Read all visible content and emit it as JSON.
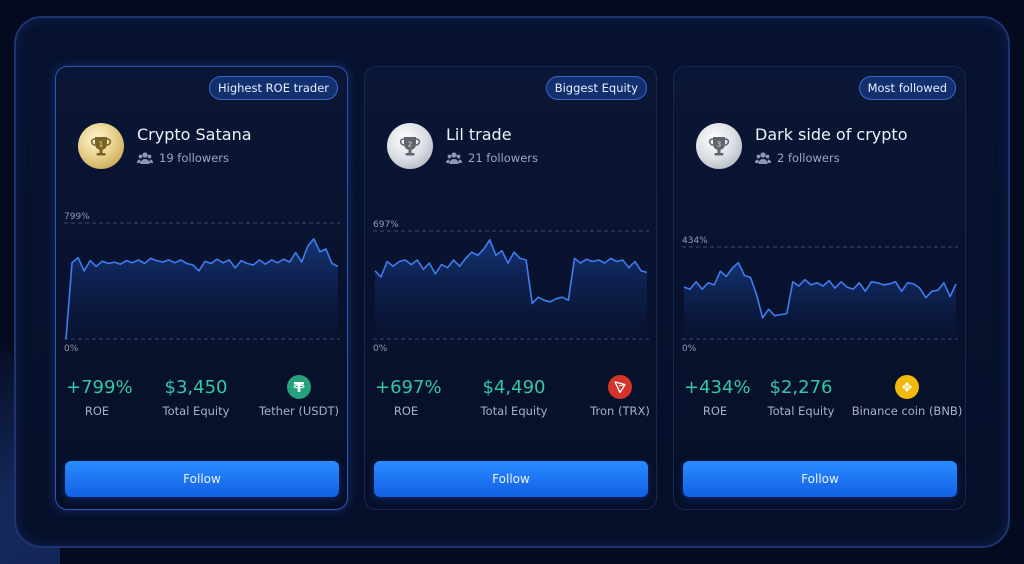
{
  "cards": [
    {
      "badge": "Highest ROE trader",
      "rank": "1",
      "medal": "gold",
      "name": "Crypto Satana",
      "followers": "19 followers",
      "chart_max_label": "799%",
      "chart_min_label": "0%",
      "roe_value": "+799%",
      "roe_label": "ROE",
      "equity_value": "$3,450",
      "equity_label": "Total Equity",
      "coin_label": "Tether (USDT)",
      "coin_icon": "tether-icon",
      "coin_color": "#26a17b",
      "follow_label": "Follow"
    },
    {
      "badge": "Biggest Equity",
      "rank": "2",
      "medal": "silver",
      "name": "Lil trade",
      "followers": "21 followers",
      "chart_max_label": "697%",
      "chart_min_label": "0%",
      "roe_value": "+697%",
      "roe_label": "ROE",
      "equity_value": "$4,490",
      "equity_label": "Total Equity",
      "coin_label": "Tron (TRX)",
      "coin_icon": "tron-icon",
      "coin_color": "#d4342a",
      "follow_label": "Follow"
    },
    {
      "badge": "Most followed",
      "rank": "3",
      "medal": "silver",
      "name": "Dark side of crypto",
      "followers": "2 followers",
      "chart_max_label": "434%",
      "chart_min_label": "0%",
      "roe_value": "+434%",
      "roe_label": "ROE",
      "equity_value": "$2,276",
      "equity_label": "Total Equity",
      "coin_label": "Binance coin (BNB)",
      "coin_icon": "bnb-icon",
      "coin_color": "#f0b90b",
      "follow_label": "Follow"
    }
  ],
  "chart_data": [
    {
      "type": "area",
      "ylim": [
        0,
        799
      ],
      "values": [
        0,
        525,
        560,
        470,
        540,
        500,
        535,
        520,
        530,
        515,
        540,
        525,
        545,
        520,
        555,
        540,
        530,
        545,
        525,
        545,
        520,
        510,
        470,
        535,
        520,
        550,
        525,
        545,
        490,
        540,
        520,
        510,
        545,
        515,
        545,
        525,
        550,
        530,
        595,
        530,
        640,
        690,
        600,
        620,
        520,
        500
      ]
    },
    {
      "type": "area",
      "ylim": [
        0,
        697
      ],
      "values": [
        440,
        400,
        500,
        470,
        500,
        510,
        480,
        510,
        450,
        490,
        420,
        480,
        460,
        510,
        470,
        520,
        560,
        540,
        580,
        640,
        540,
        570,
        490,
        560,
        520,
        510,
        230,
        270,
        250,
        240,
        260,
        270,
        250,
        520,
        490,
        515,
        500,
        510,
        490,
        520,
        500,
        510,
        460,
        500,
        440,
        430
      ]
    },
    {
      "type": "area",
      "ylim": [
        0,
        434
      ],
      "values": [
        245,
        235,
        270,
        235,
        265,
        255,
        320,
        295,
        335,
        360,
        300,
        290,
        210,
        100,
        140,
        110,
        115,
        120,
        270,
        250,
        280,
        255,
        265,
        250,
        275,
        240,
        270,
        245,
        235,
        265,
        225,
        270,
        265,
        255,
        260,
        270,
        225,
        265,
        260,
        240,
        195,
        225,
        230,
        265,
        200,
        260
      ]
    }
  ]
}
